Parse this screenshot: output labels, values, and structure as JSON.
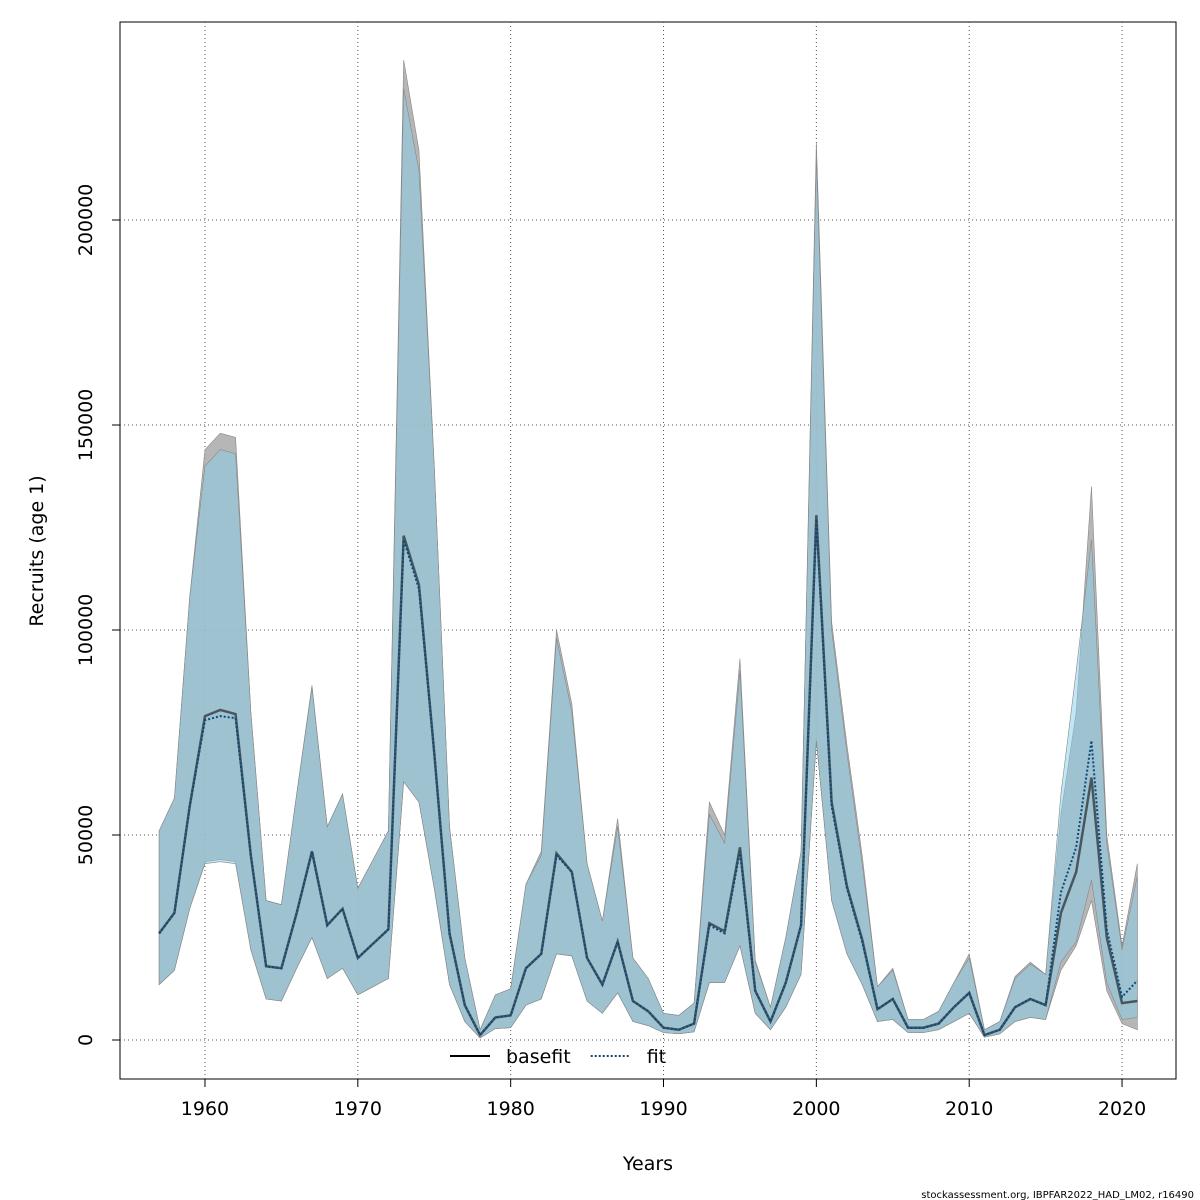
{
  "chart_data": {
    "type": "line",
    "x_label": "Years",
    "y_label": "Recruits (age 1)",
    "footnote": "stockassessment.org, IBPFAR2022_HAD_LM02, r16490",
    "x": [
      1957,
      1958,
      1959,
      1960,
      1961,
      1962,
      1963,
      1964,
      1965,
      1966,
      1967,
      1968,
      1969,
      1970,
      1971,
      1972,
      1973,
      1974,
      1975,
      1976,
      1977,
      1978,
      1979,
      1980,
      1981,
      1982,
      1983,
      1984,
      1985,
      1986,
      1987,
      1988,
      1989,
      1990,
      1991,
      1992,
      1993,
      1994,
      1995,
      1996,
      1997,
      1998,
      1999,
      2000,
      2001,
      2002,
      2003,
      2004,
      2005,
      2006,
      2007,
      2008,
      2009,
      2010,
      2011,
      2012,
      2013,
      2014,
      2015,
      2016,
      2017,
      2018,
      2019,
      2020,
      2021
    ],
    "series": [
      {
        "name": "basefit",
        "color": "#000000",
        "band_color": "#a9a9a9",
        "dash": "solid",
        "values": [
          26000,
          31000,
          57000,
          79000,
          80500,
          79500,
          45000,
          18000,
          17500,
          31000,
          46000,
          28000,
          32000,
          20000,
          23500,
          27000,
          123000,
          111000,
          70000,
          26000,
          8500,
          1200,
          5500,
          6000,
          17500,
          21000,
          45500,
          41000,
          20000,
          13500,
          24000,
          9500,
          7000,
          3000,
          2500,
          4000,
          28500,
          26500,
          47000,
          12000,
          4500,
          14000,
          28000,
          128000,
          58000,
          37500,
          24500,
          7500,
          10000,
          3000,
          3000,
          4000,
          8000,
          11500,
          1200,
          2500,
          8000,
          10000,
          8500,
          31000,
          41000,
          64000,
          25000,
          9000,
          9500
        ],
        "lower": [
          13500,
          17000,
          32000,
          43500,
          44000,
          43500,
          22000,
          10000,
          9500,
          17500,
          25000,
          15000,
          17500,
          11000,
          13000,
          15000,
          63000,
          58000,
          37000,
          13500,
          4500,
          500,
          2800,
          3000,
          8500,
          10000,
          21000,
          20500,
          9500,
          6500,
          11500,
          4500,
          3500,
          1800,
          1500,
          2000,
          14000,
          14000,
          23000,
          6500,
          2500,
          8000,
          16000,
          73000,
          34000,
          21000,
          13500,
          4500,
          5000,
          1800,
          1800,
          2500,
          4500,
          6500,
          700,
          1500,
          4500,
          5500,
          5000,
          17000,
          23000,
          34000,
          12000,
          4000,
          2500
        ],
        "upper": [
          51000,
          59000,
          108000,
          144000,
          148000,
          147000,
          80000,
          34000,
          33000,
          60000,
          86500,
          52000,
          60000,
          37000,
          44000,
          51000,
          239000,
          217000,
          140000,
          52000,
          20000,
          2500,
          11000,
          12500,
          38000,
          46000,
          100000,
          82000,
          43000,
          29000,
          54000,
          20000,
          15000,
          6500,
          6000,
          9000,
          58000,
          50000,
          93000,
          19500,
          8000,
          25000,
          46000,
          219000,
          102000,
          72000,
          45000,
          13000,
          17500,
          5000,
          5000,
          7000,
          14000,
          21000,
          2500,
          4500,
          15500,
          19000,
          16000,
          55000,
          80000,
          135000,
          50000,
          23000,
          43000
        ]
      },
      {
        "name": "fit",
        "color": "#0a4a7a",
        "band_color": "#87ceeb",
        "dash": "dotted",
        "values": [
          26000,
          31000,
          57000,
          78000,
          79000,
          78500,
          45000,
          18000,
          17500,
          31000,
          46000,
          28000,
          32000,
          20000,
          23500,
          27000,
          122000,
          110000,
          70000,
          26000,
          8500,
          1200,
          5500,
          6000,
          17500,
          21000,
          45000,
          41000,
          20000,
          13500,
          24000,
          9500,
          7000,
          3000,
          2500,
          4000,
          28000,
          26000,
          46000,
          12000,
          4500,
          14000,
          28000,
          127000,
          57000,
          37000,
          24000,
          7500,
          10000,
          3000,
          3000,
          4000,
          8000,
          11500,
          1200,
          2500,
          8000,
          10000,
          8500,
          36000,
          47000,
          73000,
          27000,
          10500,
          14500
        ],
        "lower": [
          13500,
          17000,
          32000,
          43000,
          43500,
          43000,
          22000,
          10000,
          9500,
          17500,
          25000,
          15000,
          17500,
          11000,
          13000,
          15000,
          63000,
          58000,
          37000,
          13500,
          4500,
          500,
          2800,
          3000,
          8500,
          10000,
          21000,
          20500,
          9500,
          6500,
          11500,
          4500,
          3500,
          1800,
          1500,
          2000,
          14000,
          14000,
          23000,
          6500,
          2500,
          8000,
          16000,
          73000,
          34000,
          21000,
          13500,
          4500,
          5000,
          1800,
          1800,
          2500,
          4500,
          6500,
          700,
          1500,
          4500,
          5500,
          5000,
          19000,
          24000,
          39000,
          14000,
          5000,
          5500
        ],
        "upper": [
          51000,
          59000,
          108000,
          140000,
          144000,
          143000,
          80000,
          34000,
          33000,
          60000,
          86000,
          52000,
          60000,
          37000,
          44000,
          51000,
          232000,
          212000,
          140000,
          52000,
          20000,
          2500,
          11000,
          12500,
          38000,
          45000,
          98000,
          80000,
          43000,
          29000,
          52000,
          20000,
          15000,
          6500,
          6000,
          9000,
          55000,
          48000,
          90000,
          19000,
          8000,
          25000,
          46000,
          215000,
          100000,
          70000,
          43000,
          13000,
          17000,
          5000,
          5000,
          7000,
          14000,
          20000,
          2500,
          4500,
          15000,
          18500,
          16000,
          60000,
          90000,
          122000,
          48000,
          22000,
          40000
        ]
      }
    ],
    "xlim": [
      1954.44,
      2023.53
    ],
    "ylim": [
      -9512,
      248293
    ],
    "xticks": [
      1960,
      1970,
      1980,
      1990,
      2000,
      2010,
      2020
    ],
    "yticks": [
      0,
      50000,
      100000,
      150000,
      200000
    ],
    "grid": true,
    "legend": "bottom"
  }
}
